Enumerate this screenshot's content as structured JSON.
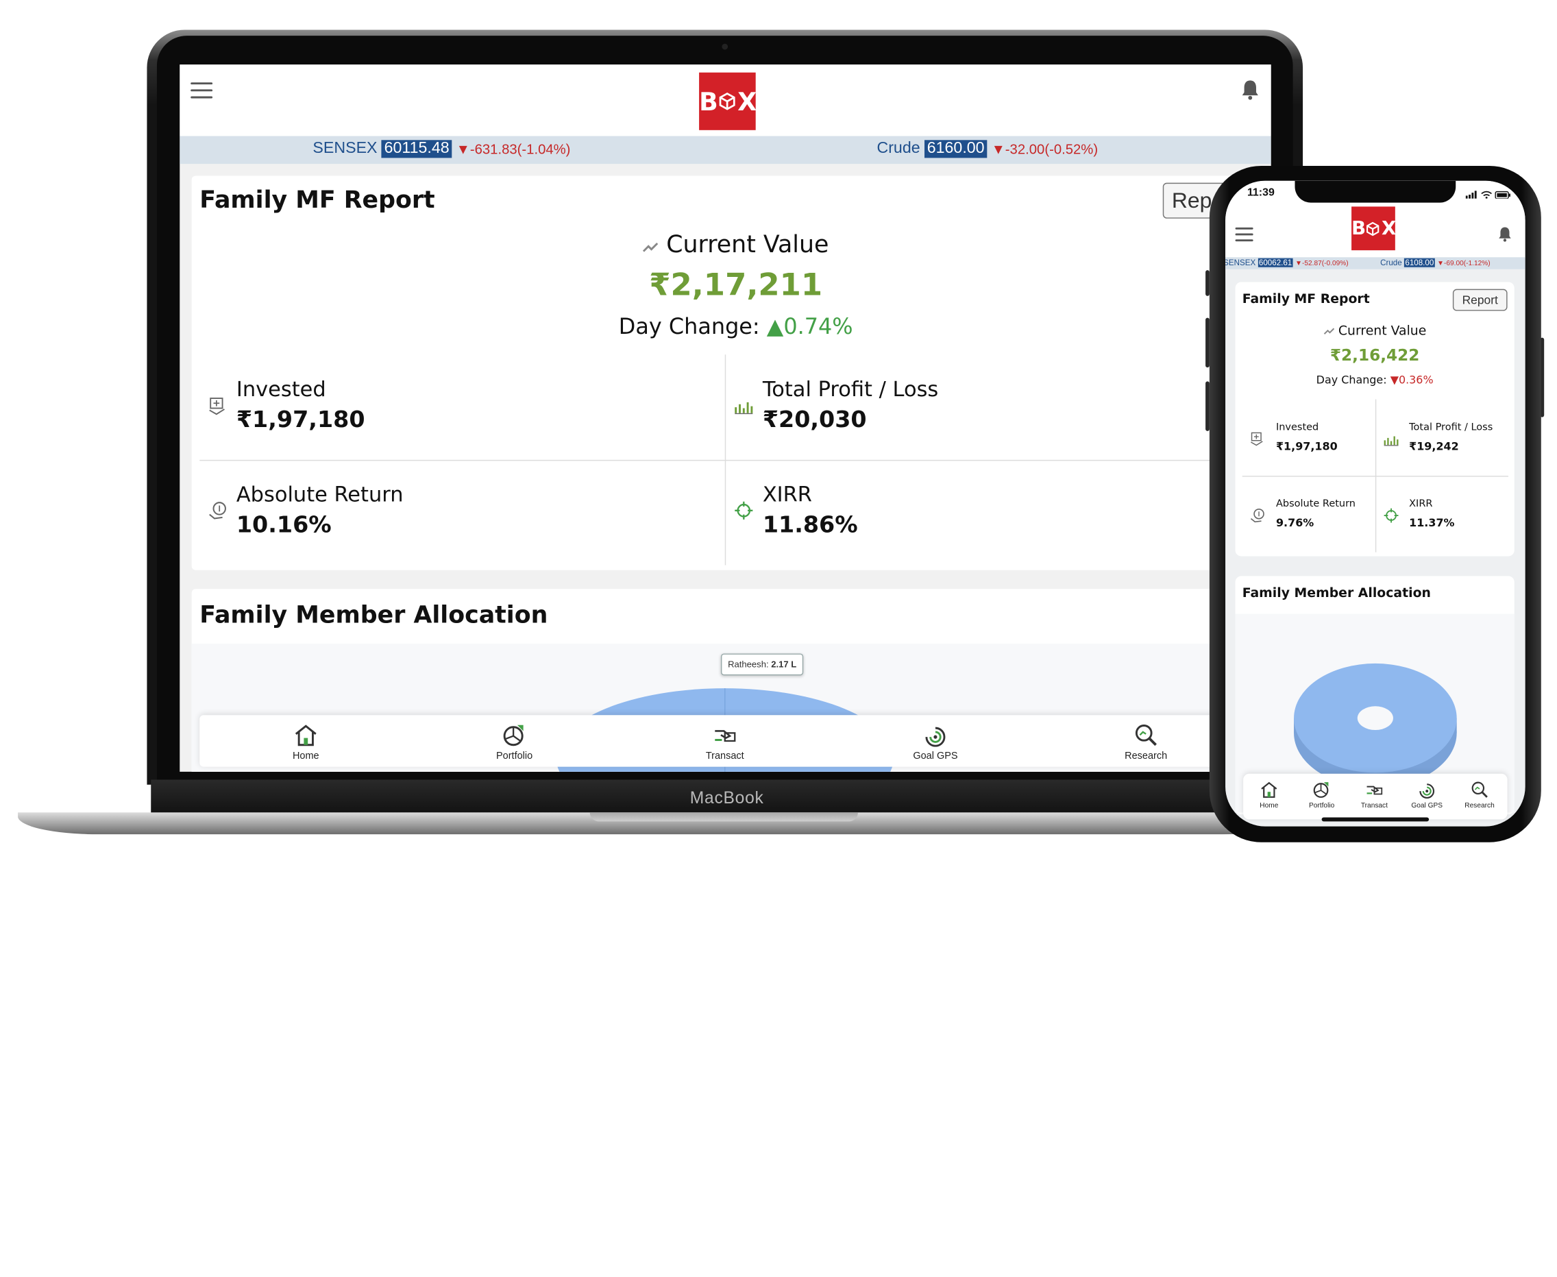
{
  "laptop": {
    "brand_label": "MacBook",
    "logo": {
      "left": "B",
      "right": "X",
      "bg": "#d32128"
    },
    "ticker": [
      {
        "name": "SENSEX",
        "value": "60115.48",
        "change": "-631.83(-1.04%)"
      },
      {
        "name": "Crude",
        "value": "6160.00",
        "change": "-32.00(-0.52%)"
      }
    ],
    "report_card": {
      "title": "Family MF Report",
      "report_button": "Rep",
      "current_value_label": "Current Value",
      "current_value": "₹2,17,211",
      "day_change_label": "Day Change:",
      "day_change_value": "0.74%",
      "day_change_dir": "up",
      "stats": [
        {
          "label": "Invested",
          "value": "₹1,97,180",
          "icon": "money-hand-icon"
        },
        {
          "label": "Total Profit / Loss",
          "value": "₹20,030",
          "icon": "bar-chart-icon"
        },
        {
          "label": "Absolute Return",
          "value": "10.16%",
          "icon": "coin-hand-icon"
        },
        {
          "label": "XIRR",
          "value": "11.86%",
          "icon": "crosshair-icon"
        }
      ]
    },
    "allocation_card": {
      "title": "Family Member Allocation",
      "tooltip_name": "Ratheesh:",
      "tooltip_value": "2.17 L"
    },
    "bottom_nav": [
      "Home",
      "Portfolio",
      "Transact",
      "Goal GPS",
      "Research"
    ]
  },
  "phone": {
    "time": "11:39",
    "logo": {
      "left": "B",
      "right": "X"
    },
    "ticker": [
      {
        "name": "SENSEX",
        "value": "60062.61",
        "change": "-52.87(-0.09%)"
      },
      {
        "name": "Crude",
        "value": "6108.00",
        "change": "-69.00(-1.12%)"
      }
    ],
    "report_card": {
      "title": "Family MF Report",
      "report_button": "Report",
      "current_value_label": "Current Value",
      "current_value": "₹2,16,422",
      "day_change_label": "Day Change:",
      "day_change_value": "0.36%",
      "day_change_dir": "down",
      "stats": [
        {
          "label": "Invested",
          "value": "₹1,97,180",
          "icon": "money-hand-icon"
        },
        {
          "label": "Total Profit / Loss",
          "value": "₹19,242",
          "icon": "bar-chart-icon"
        },
        {
          "label": "Absolute Return",
          "value": "9.76%",
          "icon": "coin-hand-icon"
        },
        {
          "label": "XIRR",
          "value": "11.37%",
          "icon": "crosshair-icon"
        }
      ]
    },
    "allocation_card": {
      "title": "Family Member Allocation"
    },
    "bottom_nav": [
      "Home",
      "Portfolio",
      "Transact",
      "Goal GPS",
      "Research"
    ]
  },
  "colors": {
    "positive_green": "#6f9d37",
    "up_arrow": "#43a047",
    "down_red": "#c62828",
    "ticker_blue": "#1f4f8c",
    "ticker_bg": "#d7e1ea",
    "pie_blue": "#8fb8ee"
  }
}
